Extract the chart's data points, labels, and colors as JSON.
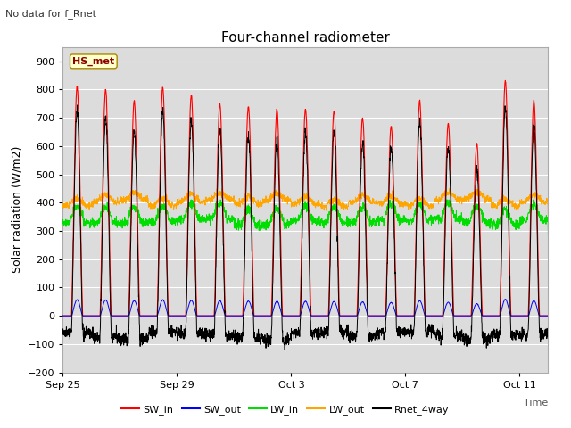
{
  "title": "Four-channel radiometer",
  "top_left_text": "No data for f_Rnet",
  "station_label": "HS_met",
  "ylabel": "Solar radiation (W/m2)",
  "xlabel": "Time",
  "ylim": [
    -200,
    950
  ],
  "yticks": [
    -200,
    -100,
    0,
    100,
    200,
    300,
    400,
    500,
    600,
    700,
    800,
    900
  ],
  "xtick_labels": [
    "Sep 25",
    "Sep 29",
    "Oct 3",
    "Oct 7",
    "Oct 11"
  ],
  "xtick_positions": [
    0,
    4,
    8,
    12,
    16
  ],
  "plot_bg_color": "#dcdcdc",
  "colors": {
    "SW_in": "#ff0000",
    "SW_out": "#0000ff",
    "LW_in": "#00dd00",
    "LW_out": "#ffa500",
    "Rnet_4way": "#000000"
  },
  "num_days": 17,
  "title_fontsize": 11,
  "label_fontsize": 9,
  "tick_fontsize": 8,
  "sw_in_peaks": [
    810,
    800,
    760,
    808,
    780,
    750,
    740,
    730,
    730,
    725,
    700,
    670,
    760,
    680,
    610,
    830,
    760
  ]
}
